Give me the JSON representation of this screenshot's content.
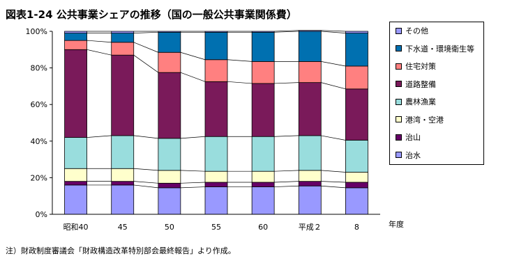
{
  "title": "図表1-24 公共事業シェアの推移（国の一般公共事業関係費）",
  "note": "注）財政制度審議会「財政構造改革特別部会最終報告」より作成。",
  "chart_data": {
    "type": "bar",
    "stacked": true,
    "categories": [
      "昭和40",
      "45",
      "50",
      "55",
      "60",
      "平成２",
      "8"
    ],
    "xlabel": "年度",
    "ylabel": "",
    "ylim": [
      0,
      100
    ],
    "yticks": [
      "0%",
      "20%",
      "40%",
      "60%",
      "80%",
      "100%"
    ],
    "legend_position": "right",
    "series": [
      {
        "name": "治水",
        "color": "#9999ff",
        "values": [
          16,
          16,
          14.5,
          15,
          15,
          15.5,
          14.5
        ]
      },
      {
        "name": "治山",
        "color": "#660066",
        "values": [
          2,
          2,
          2.5,
          2.5,
          2.5,
          2.5,
          3
        ]
      },
      {
        "name": "港湾・空港",
        "color": "#ffffcc",
        "values": [
          7,
          7,
          7,
          6,
          6,
          6,
          5.5
        ]
      },
      {
        "name": "農林漁業",
        "color": "#99dddd",
        "values": [
          17,
          18,
          17.5,
          19,
          19,
          19,
          17.5
        ]
      },
      {
        "name": "道路整備",
        "color": "#7a1a5a",
        "values": [
          48,
          44,
          36,
          30,
          29,
          29,
          28
        ]
      },
      {
        "name": "住宅対策",
        "color": "#ff8080",
        "values": [
          5,
          7,
          11,
          12,
          12,
          11.5,
          12.5
        ]
      },
      {
        "name": "下水道・環境衛生等",
        "color": "#0070b0",
        "values": [
          4,
          5,
          11,
          15,
          16,
          16.5,
          18
        ]
      },
      {
        "name": "その他",
        "color": "#9999ff",
        "values": [
          1,
          1,
          0.5,
          0.5,
          0.5,
          0.5,
          1
        ]
      }
    ]
  }
}
